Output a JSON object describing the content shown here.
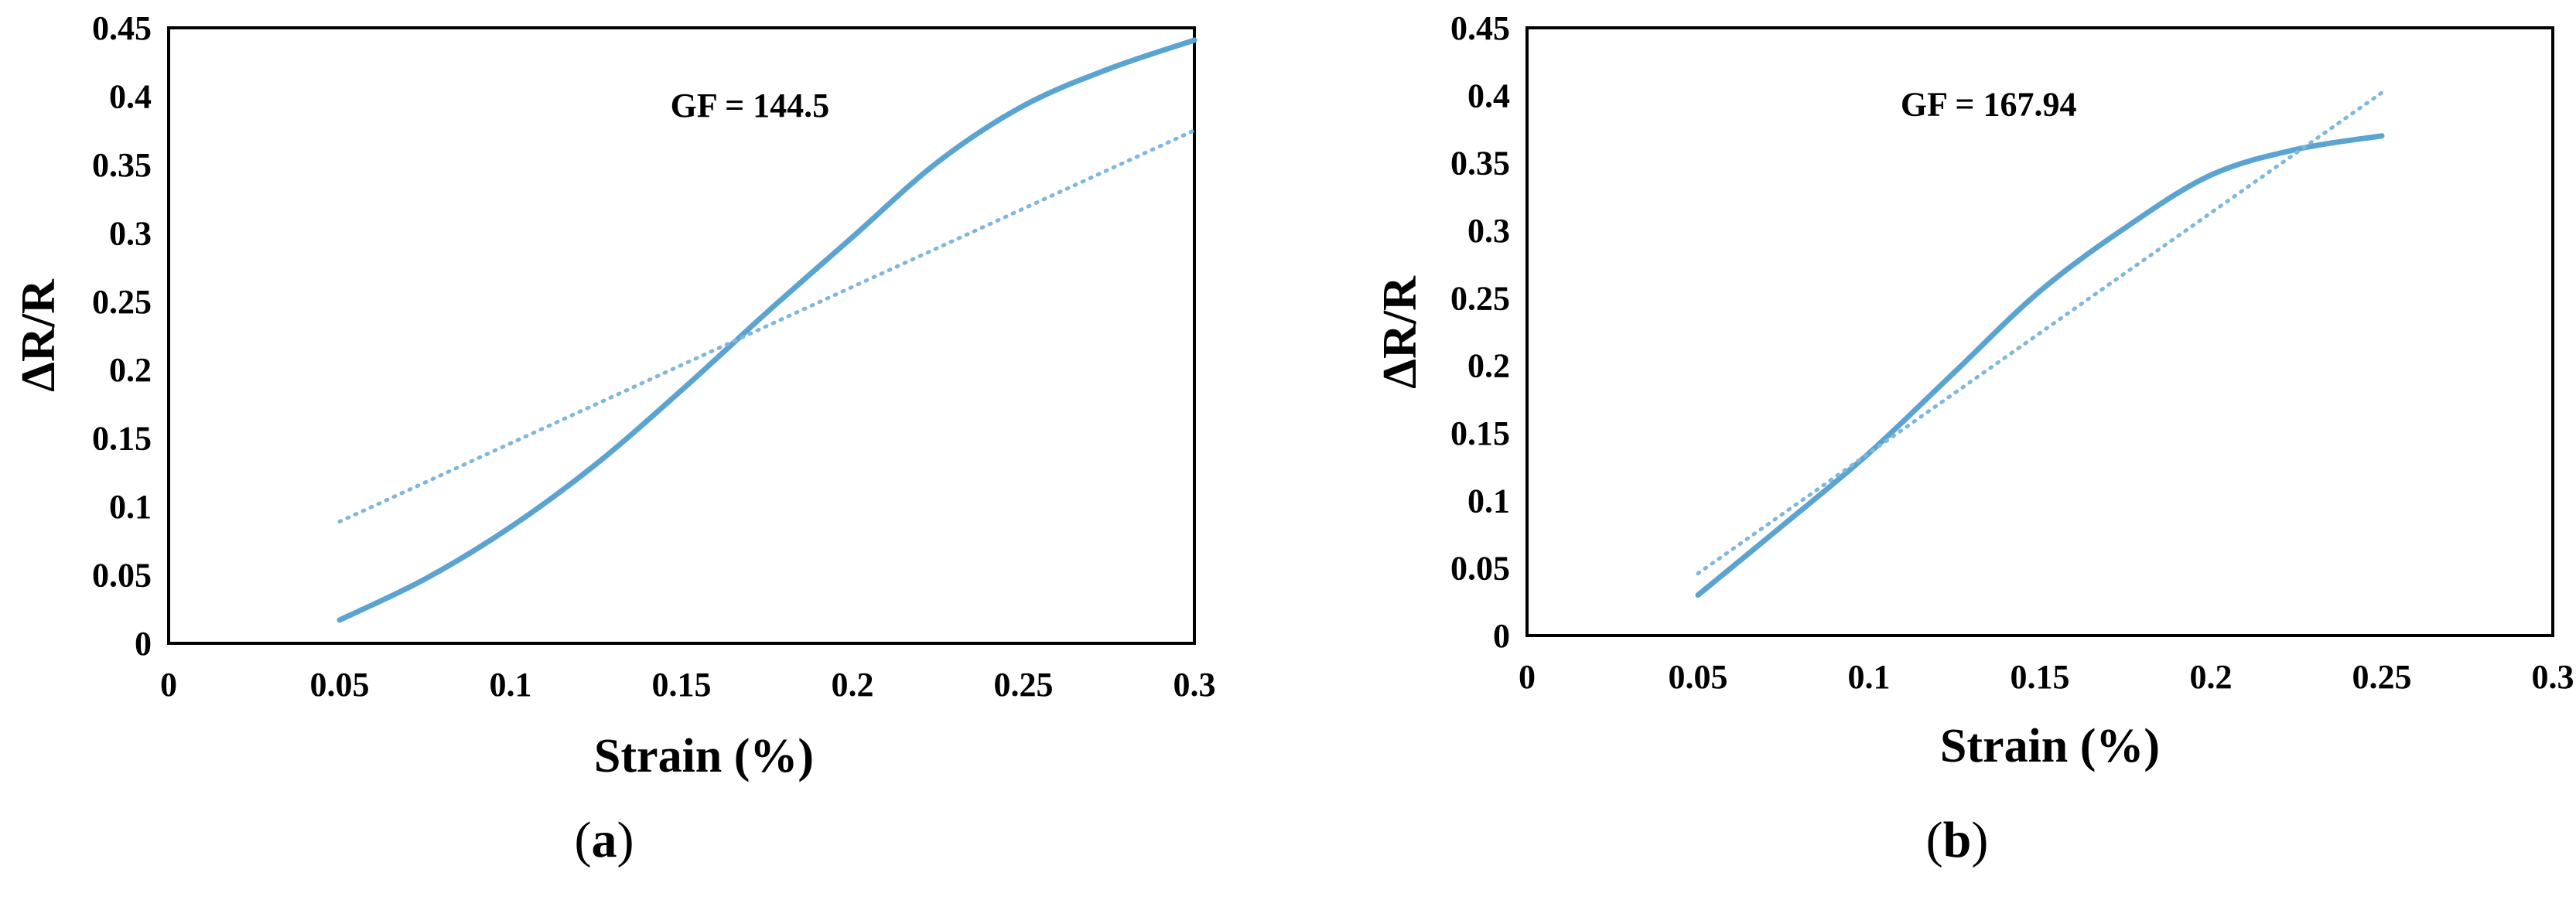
{
  "colors": {
    "series": "#5ba3d0",
    "trend": "#7fb8dc",
    "frame": "#000000"
  },
  "chart_data": [
    {
      "type": "line",
      "panel_label_letter": "a",
      "xlabel": "Strain (%)",
      "ylabel": "ΔR/R",
      "xlim": [
        0,
        0.3
      ],
      "ylim": [
        0,
        0.45
      ],
      "xticks": [
        "0",
        "0.05",
        "0.1",
        "0.15",
        "0.2",
        "0.25",
        "0.3"
      ],
      "yticks": [
        "0",
        "0.05",
        "0.1",
        "0.15",
        "0.2",
        "0.25",
        "0.3",
        "0.35",
        "0.4",
        "0.45"
      ],
      "grid": false,
      "legend": "none",
      "annotation": {
        "text": "GF = 144.5",
        "x": 0.17,
        "y": 0.385
      },
      "series": [
        {
          "style": "solid",
          "x": [
            0.05,
            0.075,
            0.1,
            0.125,
            0.15,
            0.175,
            0.2,
            0.225,
            0.25,
            0.275,
            0.3
          ],
          "y": [
            0.017,
            0.047,
            0.085,
            0.131,
            0.185,
            0.242,
            0.297,
            0.352,
            0.393,
            0.42,
            0.441
          ]
        },
        {
          "style": "dotted",
          "x": [
            0.05,
            0.3
          ],
          "y": [
            0.089,
            0.375
          ]
        }
      ]
    },
    {
      "type": "line",
      "panel_label_letter": "b",
      "xlabel": "Strain (%)",
      "ylabel": "ΔR/R",
      "xlim": [
        0,
        0.3
      ],
      "ylim": [
        0,
        0.45
      ],
      "xticks": [
        "0",
        "0.05",
        "0.1",
        "0.15",
        "0.2",
        "0.25",
        "0.3"
      ],
      "yticks": [
        "0",
        "0.05",
        "0.1",
        "0.15",
        "0.2",
        "0.25",
        "0.3",
        "0.35",
        "0.4",
        "0.45"
      ],
      "grid": false,
      "legend": "none",
      "annotation": {
        "text": "GF = 167.94",
        "x": 0.135,
        "y": 0.385
      },
      "series": [
        {
          "style": "solid",
          "x": [
            0.05,
            0.075,
            0.1,
            0.125,
            0.15,
            0.175,
            0.2,
            0.225,
            0.25
          ],
          "y": [
            0.03,
            0.082,
            0.135,
            0.195,
            0.255,
            0.302,
            0.341,
            0.36,
            0.37
          ]
        },
        {
          "style": "dotted",
          "x": [
            0.05,
            0.25
          ],
          "y": [
            0.046,
            0.402
          ]
        }
      ]
    }
  ]
}
